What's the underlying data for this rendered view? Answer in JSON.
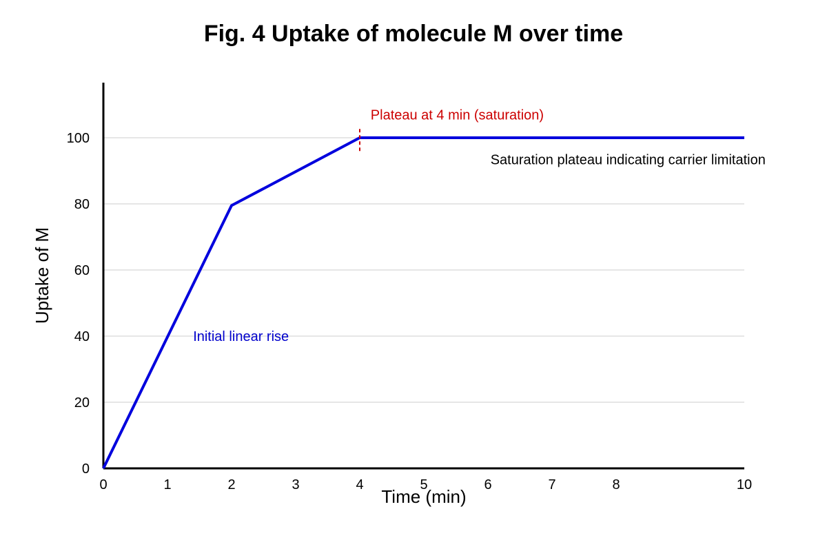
{
  "chart_data": {
    "type": "line",
    "title": "Fig. 4 Uptake of molecule M over time",
    "xlabel": "Time (min)",
    "ylabel": "Uptake of M",
    "xlim": [
      0,
      10
    ],
    "ylim": [
      0,
      115
    ],
    "x_ticks": [
      "0",
      "1",
      "2",
      "3",
      "4",
      "5",
      "6",
      "7",
      "8",
      "10"
    ],
    "y_ticks": [
      "0",
      "20",
      "40",
      "60",
      "80",
      "100"
    ],
    "grid": "horizontal",
    "series": [
      {
        "x": [
          0,
          2,
          4,
          10
        ],
        "y": [
          0,
          79.5,
          100,
          100
        ],
        "color": "#0000dd"
      }
    ],
    "annotations": [
      {
        "text": "Initial linear rise",
        "x": 1.4,
        "y": 38.5,
        "color": "#0000cc"
      },
      {
        "text": "Plateau at 4 min (saturation)",
        "x": 4.17,
        "y": 105.5,
        "color": "#cc0000"
      },
      {
        "text": "Saturation plateau indicating carrier limitation",
        "x": 6.04,
        "y": 92,
        "color": "#000000"
      }
    ],
    "marker_line": {
      "x": 4,
      "y_from": 96,
      "y_to": 103.5,
      "color": "#cc0000",
      "style": "dashed"
    }
  }
}
